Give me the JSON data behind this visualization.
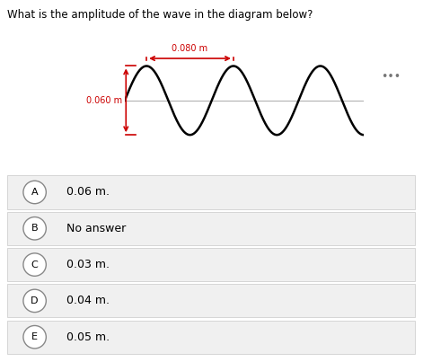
{
  "question": "What is the amplitude of the wave in the diagram below?",
  "wave_color": "#000000",
  "annotation_color": "#cc0000",
  "background_color": "#ffffff",
  "panel_bg": "#ebebeb",
  "answer_bg": "#f0f0f0",
  "amplitude_label": "0.060 m",
  "wavelength_label": "0.080 m",
  "choices": [
    {
      "letter": "A",
      "text": "0.06 m."
    },
    {
      "letter": "B",
      "text": "No answer"
    },
    {
      "letter": "C",
      "text": "0.03 m."
    },
    {
      "letter": "D",
      "text": "0.04 m."
    },
    {
      "letter": "E",
      "text": "0.05 m."
    }
  ],
  "dots_color": "#777777",
  "wave_cycles": 2.75,
  "wave_amplitude": 1.0
}
